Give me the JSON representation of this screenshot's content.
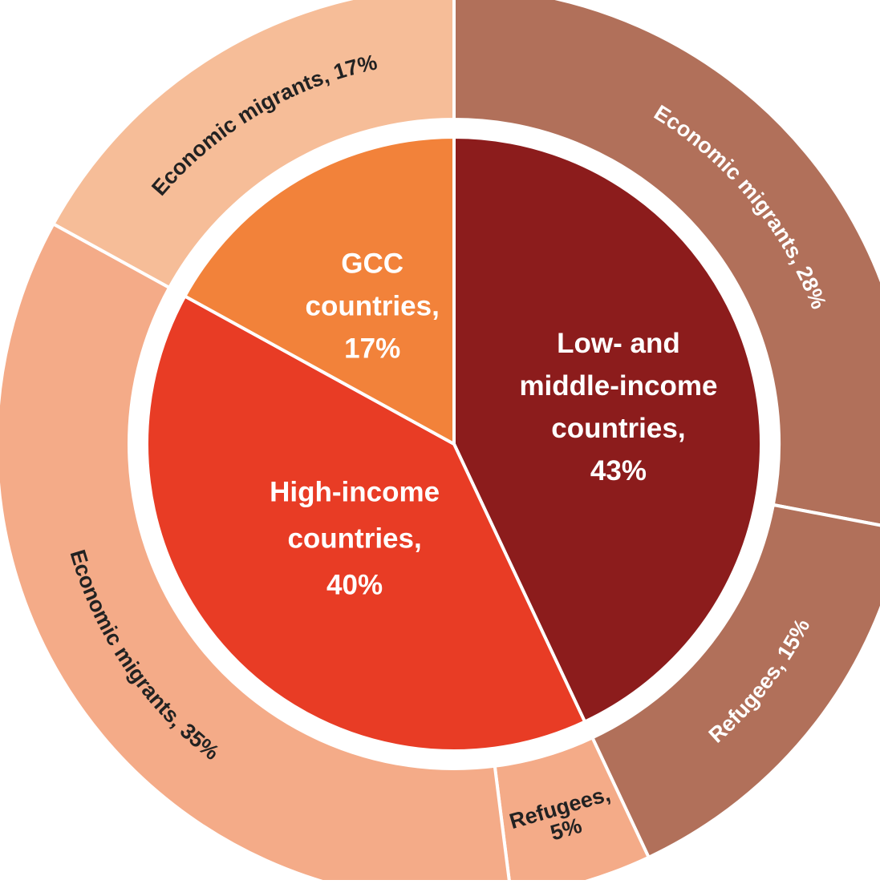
{
  "chart_data": {
    "type": "pie",
    "title": "",
    "inner_ring": {
      "slices": [
        {
          "name": "Low- and middle-income countries",
          "value": 43,
          "label_lines": [
            "Low- and",
            "middle-income",
            "countries,",
            "43%"
          ],
          "color": "#8c1c1c"
        },
        {
          "name": "High-income countries",
          "value": 40,
          "label_lines": [
            "High-income",
            "countries,",
            "40%"
          ],
          "color": "#e83c25"
        },
        {
          "name": "GCC countries",
          "value": 17,
          "label_lines": [
            "GCC",
            "countries,",
            "17%"
          ],
          "color": "#f2823a"
        }
      ]
    },
    "outer_ring": {
      "slices": [
        {
          "parent": "Low- and middle-income countries",
          "name": "Economic migrants",
          "value": 28,
          "label": "Economic migrants, 28%",
          "color": "#b1705a",
          "text_color": "#ffffff"
        },
        {
          "parent": "Low- and middle-income countries",
          "name": "Refugees",
          "value": 15,
          "label": "Refugees, 15%",
          "color": "#b1705a",
          "text_color": "#ffffff"
        },
        {
          "parent": "High-income countries",
          "name": "Refugees",
          "value": 5,
          "label_lines": [
            "Refugees,",
            "5%"
          ],
          "color": "#f4ab88",
          "text_color": "#222222"
        },
        {
          "parent": "High-income countries",
          "name": "Economic migrants",
          "value": 35,
          "label": "Economic migrants, 35%",
          "color": "#f4ab88",
          "text_color": "#222222"
        },
        {
          "parent": "GCC countries",
          "name": "Economic migrants",
          "value": 17,
          "label": "Economic migrants, 17%",
          "color": "#f6bd98",
          "text_color": "#222222"
        }
      ]
    }
  }
}
